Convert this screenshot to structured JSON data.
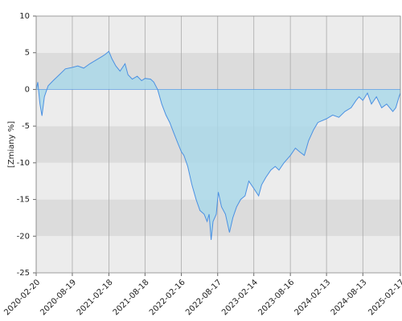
{
  "chart_data": {
    "type": "area",
    "y_label": "[Zmiany %]",
    "x": [
      "2020-02-20",
      "2020-02-28",
      "2020-03-10",
      "2020-03-20",
      "2020-04-01",
      "2020-04-20",
      "2020-05-15",
      "2020-06-15",
      "2020-07-15",
      "2020-08-19",
      "2020-09-15",
      "2020-10-15",
      "2020-11-15",
      "2020-12-15",
      "2021-01-15",
      "2021-02-01",
      "2021-02-18",
      "2021-03-05",
      "2021-03-25",
      "2021-04-15",
      "2021-05-10",
      "2021-05-25",
      "2021-06-15",
      "2021-07-10",
      "2021-08-01",
      "2021-08-18",
      "2021-09-15",
      "2021-10-01",
      "2021-10-20",
      "2021-11-10",
      "2021-12-01",
      "2021-12-20",
      "2022-01-10",
      "2022-02-01",
      "2022-02-16",
      "2022-03-01",
      "2022-03-20",
      "2022-04-10",
      "2022-05-01",
      "2022-05-20",
      "2022-06-10",
      "2022-06-25",
      "2022-07-05",
      "2022-07-15",
      "2022-07-25",
      "2022-08-10",
      "2022-08-20",
      "2022-09-05",
      "2022-09-25",
      "2022-10-15",
      "2022-11-01",
      "2022-11-20",
      "2022-12-10",
      "2023-01-01",
      "2023-01-20",
      "2023-02-14",
      "2023-03-10",
      "2023-03-25",
      "2023-04-15",
      "2023-05-10",
      "2023-06-01",
      "2023-06-20",
      "2023-07-15",
      "2023-08-16",
      "2023-09-10",
      "2023-10-01",
      "2023-10-25",
      "2023-11-15",
      "2023-12-10",
      "2024-01-01",
      "2024-02-13",
      "2024-03-15",
      "2024-04-15",
      "2024-05-15",
      "2024-06-15",
      "2024-07-10",
      "2024-07-25",
      "2024-08-13",
      "2024-09-05",
      "2024-09-25",
      "2024-10-20",
      "2024-11-15",
      "2024-12-10",
      "2025-01-10",
      "2025-01-25",
      "2025-02-10",
      "2025-02-17"
    ],
    "values": [
      0,
      1,
      -2,
      -3.6,
      -1,
      0.5,
      1.2,
      2,
      2.8,
      3,
      3.2,
      2.9,
      3.5,
      4,
      4.5,
      4.8,
      5.2,
      4.2,
      3.2,
      2.5,
      3.5,
      2,
      1.4,
      1.8,
      1.2,
      1.5,
      1.4,
      1,
      0,
      -2,
      -3.5,
      -4.5,
      -6,
      -7.5,
      -8.5,
      -9,
      -10.5,
      -13,
      -15,
      -16.5,
      -17,
      -18,
      -17,
      -20.5,
      -18,
      -17,
      -14,
      -16,
      -17,
      -19.5,
      -17.5,
      -16,
      -15,
      -14.5,
      -12.5,
      -13.5,
      -14.5,
      -13,
      -12,
      -11,
      -10.5,
      -11,
      -10,
      -9,
      -8,
      -8.5,
      -9,
      -7,
      -5.5,
      -4.5,
      -4,
      -3.5,
      -3.8,
      -3,
      -2.5,
      -1.5,
      -1,
      -1.5,
      -0.5,
      -2,
      -1,
      -2.5,
      -2,
      -3,
      -2.5,
      -1,
      -0.5
    ],
    "color": "#4a90e2",
    "fill_color": "#a8d8ea",
    "xlim": [
      "2020-02-20",
      "2025-02-17"
    ],
    "xticks": [
      "2020-02-20",
      "2020-08-19",
      "2021-02-18",
      "2021-08-18",
      "2022-02-16",
      "2022-08-17",
      "2023-02-14",
      "2023-08-16",
      "2024-02-13",
      "2024-08-13",
      "2025-02-17"
    ],
    "ylim": [
      -25,
      10
    ],
    "yticks": [
      -25,
      -20,
      -15,
      -10,
      -5,
      0,
      5,
      10
    ],
    "grid": true
  }
}
